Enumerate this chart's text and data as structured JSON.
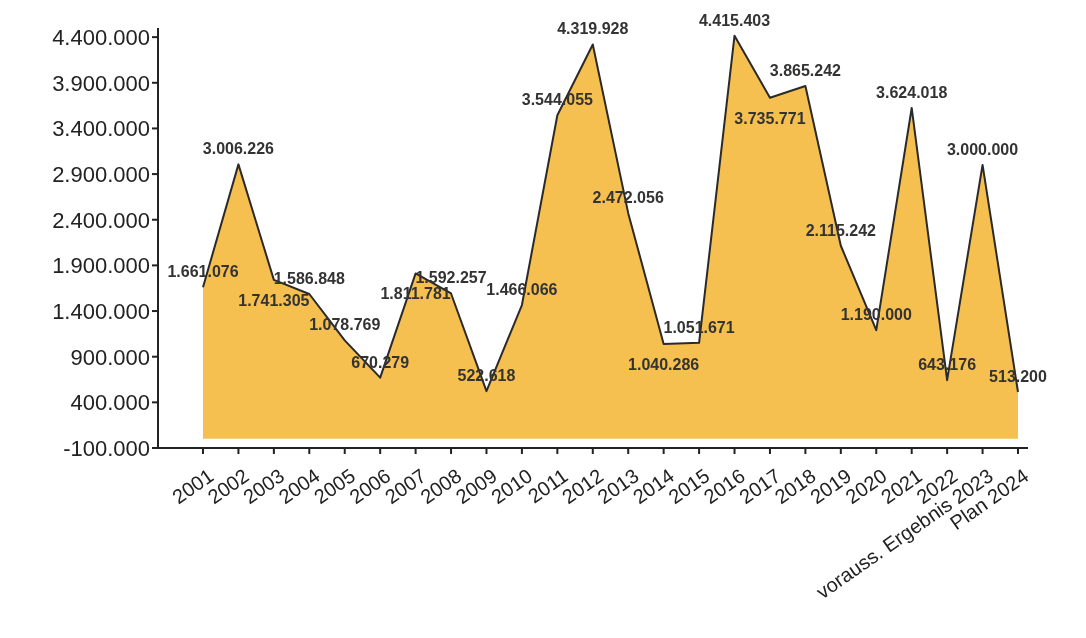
{
  "chart_data": {
    "type": "area",
    "categories": [
      "2001",
      "2002",
      "2003",
      "2004",
      "2005",
      "2006",
      "2007",
      "2008",
      "2009",
      "2010",
      "2011",
      "2012",
      "2013",
      "2014",
      "2015",
      "2016",
      "2017",
      "2018",
      "2019",
      "2020",
      "2021",
      "2022",
      "vorauss. Ergebnis 2023",
      "Plan 2024"
    ],
    "series": [
      {
        "color": "#f6c050",
        "values": [
          1661076,
          3006226,
          1741305,
          1586848,
          1078769,
          670279,
          1811781,
          1592257,
          522618,
          1466066,
          3544055,
          4319928,
          2472056,
          1040286,
          1051671,
          4415403,
          3735771,
          3865242,
          2115242,
          1190000,
          3624018,
          643176,
          3000000,
          513200
        ],
        "value_labels": [
          "1.661.076",
          "3.006.226",
          "1.741.305",
          "1.586.848",
          "1.078.769",
          "670.279",
          "1.811.781",
          "1.592.257",
          "522.618",
          "1.466.066",
          "3.544.055",
          "4.319.928",
          "2.472.056",
          "1.040.286",
          "1.051.671",
          "4.415.403",
          "3.735.771",
          "3.865.242",
          "2.115.242",
          "1.190.000",
          "3.624.018",
          "643.176",
          "3.000.000",
          "513.200"
        ]
      }
    ],
    "ylim": [
      -100000,
      4500000
    ],
    "yticks": [
      {
        "value": -100000,
        "label": "-100.000"
      },
      {
        "value": 400000,
        "label": "400.000"
      },
      {
        "value": 900000,
        "label": "900.000"
      },
      {
        "value": 1400000,
        "label": "1.400.000"
      },
      {
        "value": 1900000,
        "label": "1.900.000"
      },
      {
        "value": 2400000,
        "label": "2.400.000"
      },
      {
        "value": 2900000,
        "label": "2.900.000"
      },
      {
        "value": 3400000,
        "label": "3.400.000"
      },
      {
        "value": 3900000,
        "label": "3.900.000"
      },
      {
        "value": 4400000,
        "label": "4.400.000"
      }
    ]
  }
}
